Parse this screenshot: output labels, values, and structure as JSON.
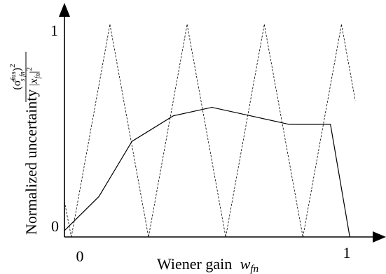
{
  "chart_data": {
    "type": "line",
    "ylabel_prefix": "Normalized uncertainty",
    "ylabel_fraction": {
      "numerator": "(σ̂",
      "numerator_sup": "fus",
      "numerator_sub": "s fn",
      "numerator_tail": ")",
      "numerator_power": "2",
      "denominator": "|x",
      "denominator_sub": "fn",
      "denominator_tail": "|",
      "denominator_power": "2"
    },
    "xlabel_text": "Wiener gain",
    "xlabel_var": "w",
    "xlabel_var_sub": "fn",
    "x_tick_labels": [
      "0",
      "1"
    ],
    "y_tick_labels": [
      "0",
      "1"
    ],
    "xlim": [
      -0.025,
      1.05
    ],
    "ylim": [
      0,
      1.0
    ],
    "triangle_peaks": [
      -0.15,
      0.14,
      0.42,
      0.7,
      0.98
    ],
    "triangle_valleys": [
      0.0,
      0.28,
      0.56,
      0.84,
      1.12
    ],
    "series": [
      {
        "x": [
          -0.025,
          0.1,
          0.22,
          0.37,
          0.51,
          0.65,
          0.79,
          0.94,
          1.01
        ],
        "y": [
          0.03,
          0.19,
          0.45,
          0.57,
          0.61,
          0.57,
          0.53,
          0.53,
          0.0
        ]
      }
    ]
  }
}
